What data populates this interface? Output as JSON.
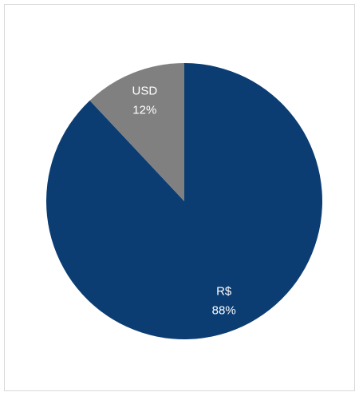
{
  "chart_data": {
    "type": "pie",
    "categories": [
      "R$",
      "USD"
    ],
    "values": [
      88,
      12
    ],
    "value_labels": [
      "88%",
      "12%"
    ],
    "colors": [
      "#0b3d73",
      "#808080"
    ]
  }
}
